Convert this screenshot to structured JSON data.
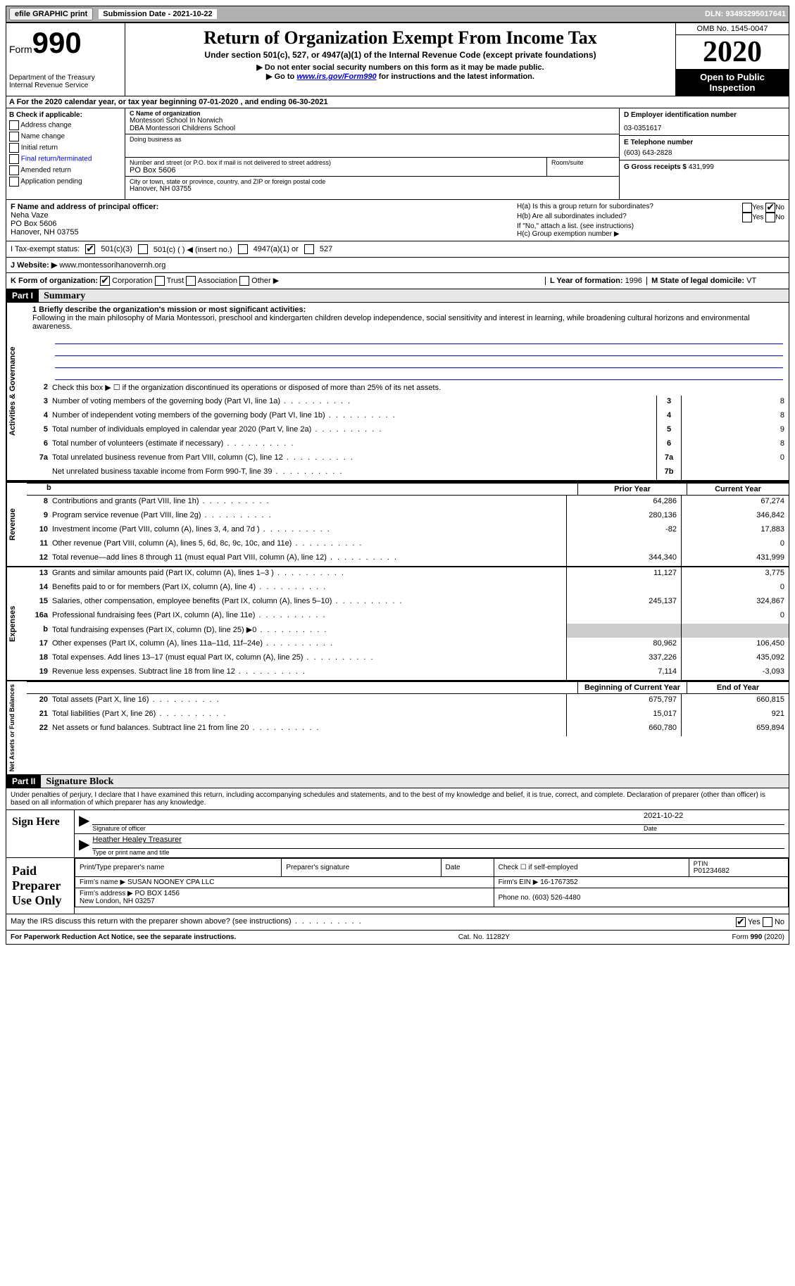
{
  "top_bar": {
    "efile_btn": "efile GRAPHIC print",
    "submission_label": "Submission Date - 2021-10-22",
    "dln": "DLN: 93493295017641"
  },
  "header": {
    "form_prefix": "Form",
    "form_number": "990",
    "dept": "Department of the Treasury\nInternal Revenue Service",
    "title": "Return of Organization Exempt From Income Tax",
    "subtitle": "Under section 501(c), 527, or 4947(a)(1) of the Internal Revenue Code (except private foundations)",
    "note1": "▶ Do not enter social security numbers on this form as it may be made public.",
    "note2_pre": "▶ Go to ",
    "note2_link": "www.irs.gov/Form990",
    "note2_post": " for instructions and the latest information.",
    "omb": "OMB No. 1545-0047",
    "year": "2020",
    "inspection": "Open to Public Inspection"
  },
  "row_a": "A For the 2020 calendar year, or tax year beginning 07-01-2020   , and ending 06-30-2021",
  "section_b": {
    "label": "B Check if applicable:",
    "opts": [
      "Address change",
      "Name change",
      "Initial return",
      "Final return/terminated",
      "Amended return",
      "Application pending"
    ]
  },
  "section_c": {
    "name_label": "C Name of organization",
    "name1": "Montessori School In Norwich",
    "name2": "DBA Montessori Childrens School",
    "dba_label": "Doing business as",
    "addr_label": "Number and street (or P.O. box if mail is not delivered to street address)",
    "room_label": "Room/suite",
    "addr": "PO Box 5606",
    "city_label": "City or town, state or province, country, and ZIP or foreign postal code",
    "city": "Hanover, NH  03755"
  },
  "section_d": {
    "ein_label": "D Employer identification number",
    "ein": "03-0351617",
    "phone_label": "E Telephone number",
    "phone": "(603) 643-2828",
    "gross_label": "G Gross receipts $",
    "gross": "431,999"
  },
  "section_f": {
    "label": "F  Name and address of principal officer:",
    "name": "Neha Vaze",
    "addr1": "PO Box 5606",
    "addr2": "Hanover, NH  03755"
  },
  "section_h": {
    "ha_label": "H(a)  Is this a group return for subordinates?",
    "ha_yes": "Yes",
    "ha_no": "No",
    "hb_label": "H(b)  Are all subordinates included?",
    "hb_note": "If \"No,\" attach a list. (see instructions)",
    "hc_label": "H(c)  Group exemption number ▶"
  },
  "section_i": {
    "label": "I    Tax-exempt status:",
    "opt1": "501(c)(3)",
    "opt2": "501(c) (  ) ◀ (insert no.)",
    "opt3": "4947(a)(1) or",
    "opt4": "527"
  },
  "section_j": {
    "label": "J   Website: ▶",
    "value": "www.montessorihanovernh.org"
  },
  "section_k": {
    "label": "K Form of organization:",
    "opts": [
      "Corporation",
      "Trust",
      "Association",
      "Other ▶"
    ],
    "l_label": "L Year of formation:",
    "l_val": "1996",
    "m_label": "M State of legal domicile:",
    "m_val": "VT"
  },
  "part1": {
    "header": "Part I",
    "title": "Summary",
    "line1_label": "1  Briefly describe the organization's mission or most significant activities:",
    "mission": "Following in the main philosophy of Maria Montessori, preschool and kindergarten children develop independence, social sensitivity and interest in learning, while broadening cultural horizons and environmental awareness.",
    "line2": "Check this box ▶ ☐  if the organization discontinued its operations or disposed of more than 25% of its net assets.",
    "gov_label": "Activities & Governance",
    "rev_label": "Revenue",
    "exp_label": "Expenses",
    "net_label": "Net Assets or Fund Balances",
    "prior_year": "Prior Year",
    "current_year": "Current Year",
    "begin_year": "Beginning of Current Year",
    "end_year": "End of Year",
    "lines_gov": [
      {
        "n": "3",
        "d": "Number of voting members of the governing body (Part VI, line 1a)",
        "nc": "3",
        "v": "8"
      },
      {
        "n": "4",
        "d": "Number of independent voting members of the governing body (Part VI, line 1b)",
        "nc": "4",
        "v": "8"
      },
      {
        "n": "5",
        "d": "Total number of individuals employed in calendar year 2020 (Part V, line 2a)",
        "nc": "5",
        "v": "9"
      },
      {
        "n": "6",
        "d": "Total number of volunteers (estimate if necessary)",
        "nc": "6",
        "v": "8"
      },
      {
        "n": "7a",
        "d": "Total unrelated business revenue from Part VIII, column (C), line 12",
        "nc": "7a",
        "v": "0"
      },
      {
        "n": "",
        "d": "Net unrelated business taxable income from Form 990-T, line 39",
        "nc": "7b",
        "v": ""
      }
    ],
    "lines_rev": [
      {
        "n": "8",
        "d": "Contributions and grants (Part VIII, line 1h)",
        "py": "64,286",
        "cy": "67,274"
      },
      {
        "n": "9",
        "d": "Program service revenue (Part VIII, line 2g)",
        "py": "280,136",
        "cy": "346,842"
      },
      {
        "n": "10",
        "d": "Investment income (Part VIII, column (A), lines 3, 4, and 7d )",
        "py": "-82",
        "cy": "17,883"
      },
      {
        "n": "11",
        "d": "Other revenue (Part VIII, column (A), lines 5, 6d, 8c, 9c, 10c, and 11e)",
        "py": "",
        "cy": "0"
      },
      {
        "n": "12",
        "d": "Total revenue—add lines 8 through 11 (must equal Part VIII, column (A), line 12)",
        "py": "344,340",
        "cy": "431,999"
      }
    ],
    "lines_exp": [
      {
        "n": "13",
        "d": "Grants and similar amounts paid (Part IX, column (A), lines 1–3 )",
        "py": "11,127",
        "cy": "3,775"
      },
      {
        "n": "14",
        "d": "Benefits paid to or for members (Part IX, column (A), line 4)",
        "py": "",
        "cy": "0"
      },
      {
        "n": "15",
        "d": "Salaries, other compensation, employee benefits (Part IX, column (A), lines 5–10)",
        "py": "245,137",
        "cy": "324,867"
      },
      {
        "n": "16a",
        "d": "Professional fundraising fees (Part IX, column (A), line 11e)",
        "py": "",
        "cy": "0"
      },
      {
        "n": "b",
        "d": "Total fundraising expenses (Part IX, column (D), line 25) ▶0",
        "py": "SHADED",
        "cy": "SHADED"
      },
      {
        "n": "17",
        "d": "Other expenses (Part IX, column (A), lines 11a–11d, 11f–24e)",
        "py": "80,962",
        "cy": "106,450"
      },
      {
        "n": "18",
        "d": "Total expenses. Add lines 13–17 (must equal Part IX, column (A), line 25)",
        "py": "337,226",
        "cy": "435,092"
      },
      {
        "n": "19",
        "d": "Revenue less expenses. Subtract line 18 from line 12",
        "py": "7,114",
        "cy": "-3,093"
      }
    ],
    "lines_net": [
      {
        "n": "20",
        "d": "Total assets (Part X, line 16)",
        "py": "675,797",
        "cy": "660,815"
      },
      {
        "n": "21",
        "d": "Total liabilities (Part X, line 26)",
        "py": "15,017",
        "cy": "921"
      },
      {
        "n": "22",
        "d": "Net assets or fund balances. Subtract line 21 from line 20",
        "py": "660,780",
        "cy": "659,894"
      }
    ]
  },
  "part2": {
    "header": "Part II",
    "title": "Signature Block",
    "declaration": "Under penalties of perjury, I declare that I have examined this return, including accompanying schedules and statements, and to the best of my knowledge and belief, it is true, correct, and complete. Declaration of preparer (other than officer) is based on all information of which preparer has any knowledge.",
    "sign_here": "Sign Here",
    "sig_officer": "Signature of officer",
    "sig_date": "2021-10-22",
    "date_label": "Date",
    "officer_name": "Heather Healey Treasurer",
    "type_label": "Type or print name and title",
    "paid_label": "Paid Preparer Use Only",
    "prep_name_label": "Print/Type preparer's name",
    "prep_sig_label": "Preparer's signature",
    "check_label": "Check ☐ if self-employed",
    "ptin_label": "PTIN",
    "ptin": "P01234682",
    "firm_name_label": "Firm's name    ▶",
    "firm_name": "SUSAN NOONEY CPA LLC",
    "firm_ein_label": "Firm's EIN ▶",
    "firm_ein": "16-1767352",
    "firm_addr_label": "Firm's address ▶",
    "firm_addr": "PO BOX 1456\nNew London, NH  03257",
    "phone_label": "Phone no.",
    "phone": "(603) 526-4480",
    "discuss": "May the IRS discuss this return with the preparer shown above? (see instructions)",
    "discuss_yes": "Yes",
    "discuss_no": "No"
  },
  "footer": {
    "left": "For Paperwork Reduction Act Notice, see the separate instructions.",
    "mid": "Cat. No. 11282Y",
    "right": "Form 990 (2020)"
  }
}
